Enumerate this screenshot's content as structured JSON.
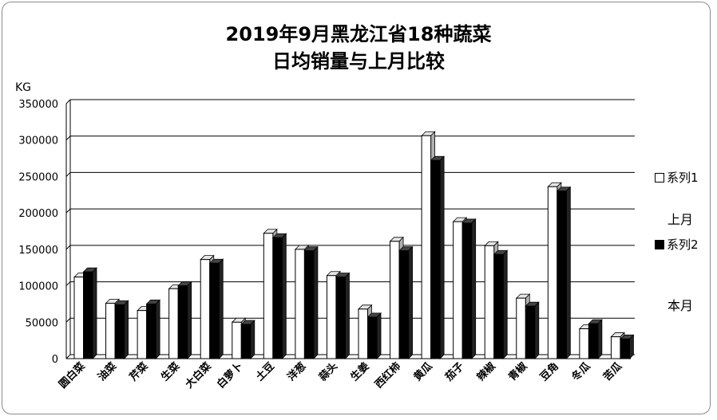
{
  "chart_data": {
    "type": "bar",
    "title_line1": "2019年9月黑龙江省18种蔬菜",
    "title_line2": "日均销量与上月比较",
    "unit_label": "KG",
    "ylim": [
      0,
      350000
    ],
    "yticks": [
      "350000",
      "300000",
      "250000",
      "200000",
      "150000",
      "100000",
      "50000",
      "0"
    ],
    "ytick_values": [
      350000,
      300000,
      250000,
      200000,
      150000,
      100000,
      50000,
      0
    ],
    "categories": [
      "圆白菜",
      "油菜",
      "芹菜",
      "生菜",
      "大白菜",
      "白萝卜",
      "土豆",
      "洋葱",
      "蒜头",
      "生姜",
      "西红柿",
      "黄瓜",
      "茄子",
      "辣椒",
      "青椒",
      "豆角",
      "冬瓜",
      "苦瓜"
    ],
    "series": [
      {
        "name": "系列1",
        "color": "#ffffff",
        "values": [
          112000,
          76000,
          66000,
          96000,
          136000,
          50000,
          172000,
          150000,
          114000,
          68000,
          161000,
          306000,
          188000,
          155000,
          83000,
          236000,
          41000,
          30000
        ]
      },
      {
        "name": "系列2",
        "color": "#000000",
        "values": [
          119000,
          74000,
          75000,
          100000,
          131000,
          47000,
          166000,
          148000,
          112000,
          57000,
          148000,
          272000,
          186000,
          143000,
          72000,
          230000,
          48000,
          27000
        ]
      }
    ],
    "legend_position": "right",
    "grid": true,
    "side_notes": [
      "上月",
      "本月"
    ]
  }
}
